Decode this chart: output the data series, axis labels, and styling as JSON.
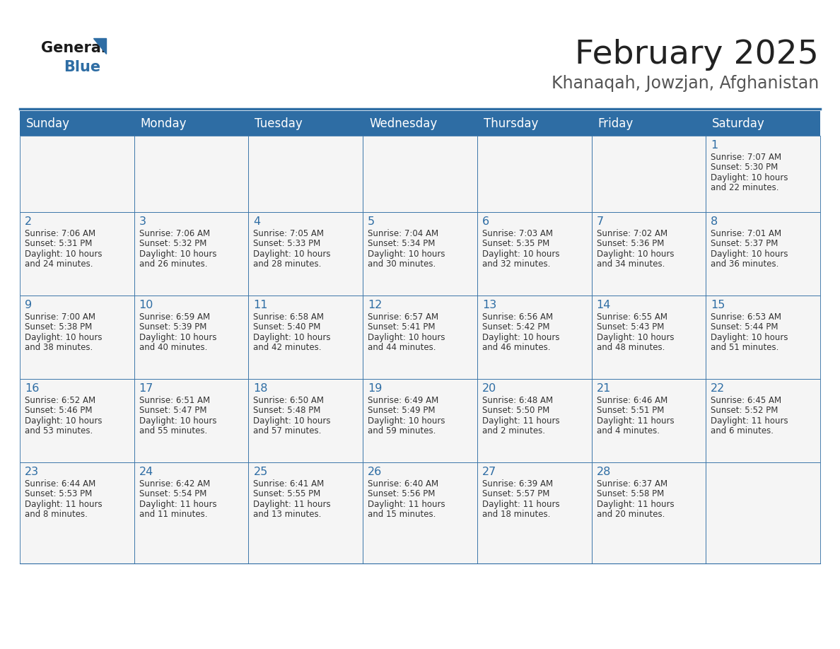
{
  "title": "February 2025",
  "subtitle": "Khanaqah, Jowzjan, Afghanistan",
  "days_of_week": [
    "Sunday",
    "Monday",
    "Tuesday",
    "Wednesday",
    "Thursday",
    "Friday",
    "Saturday"
  ],
  "header_bg": "#2E6DA4",
  "header_text": "#FFFFFF",
  "cell_bg": "#F5F5F5",
  "border_color": "#2E6DA4",
  "cell_border_color": "#2E6DA4",
  "title_color": "#222222",
  "subtitle_color": "#555555",
  "text_color": "#333333",
  "day_num_color": "#2E6DA4",
  "logo_general_color": "#1a1a1a",
  "logo_blue_color": "#2E6DA4",
  "logo_triangle_color": "#2E6DA4",
  "calendar_data": [
    [
      null,
      null,
      null,
      null,
      null,
      null,
      {
        "day": 1,
        "sunrise": "7:07 AM",
        "sunset": "5:30 PM",
        "daylight_line1": "Daylight: 10 hours",
        "daylight_line2": "and 22 minutes."
      }
    ],
    [
      {
        "day": 2,
        "sunrise": "7:06 AM",
        "sunset": "5:31 PM",
        "daylight_line1": "Daylight: 10 hours",
        "daylight_line2": "and 24 minutes."
      },
      {
        "day": 3,
        "sunrise": "7:06 AM",
        "sunset": "5:32 PM",
        "daylight_line1": "Daylight: 10 hours",
        "daylight_line2": "and 26 minutes."
      },
      {
        "day": 4,
        "sunrise": "7:05 AM",
        "sunset": "5:33 PM",
        "daylight_line1": "Daylight: 10 hours",
        "daylight_line2": "and 28 minutes."
      },
      {
        "day": 5,
        "sunrise": "7:04 AM",
        "sunset": "5:34 PM",
        "daylight_line1": "Daylight: 10 hours",
        "daylight_line2": "and 30 minutes."
      },
      {
        "day": 6,
        "sunrise": "7:03 AM",
        "sunset": "5:35 PM",
        "daylight_line1": "Daylight: 10 hours",
        "daylight_line2": "and 32 minutes."
      },
      {
        "day": 7,
        "sunrise": "7:02 AM",
        "sunset": "5:36 PM",
        "daylight_line1": "Daylight: 10 hours",
        "daylight_line2": "and 34 minutes."
      },
      {
        "day": 8,
        "sunrise": "7:01 AM",
        "sunset": "5:37 PM",
        "daylight_line1": "Daylight: 10 hours",
        "daylight_line2": "and 36 minutes."
      }
    ],
    [
      {
        "day": 9,
        "sunrise": "7:00 AM",
        "sunset": "5:38 PM",
        "daylight_line1": "Daylight: 10 hours",
        "daylight_line2": "and 38 minutes."
      },
      {
        "day": 10,
        "sunrise": "6:59 AM",
        "sunset": "5:39 PM",
        "daylight_line1": "Daylight: 10 hours",
        "daylight_line2": "and 40 minutes."
      },
      {
        "day": 11,
        "sunrise": "6:58 AM",
        "sunset": "5:40 PM",
        "daylight_line1": "Daylight: 10 hours",
        "daylight_line2": "and 42 minutes."
      },
      {
        "day": 12,
        "sunrise": "6:57 AM",
        "sunset": "5:41 PM",
        "daylight_line1": "Daylight: 10 hours",
        "daylight_line2": "and 44 minutes."
      },
      {
        "day": 13,
        "sunrise": "6:56 AM",
        "sunset": "5:42 PM",
        "daylight_line1": "Daylight: 10 hours",
        "daylight_line2": "and 46 minutes."
      },
      {
        "day": 14,
        "sunrise": "6:55 AM",
        "sunset": "5:43 PM",
        "daylight_line1": "Daylight: 10 hours",
        "daylight_line2": "and 48 minutes."
      },
      {
        "day": 15,
        "sunrise": "6:53 AM",
        "sunset": "5:44 PM",
        "daylight_line1": "Daylight: 10 hours",
        "daylight_line2": "and 51 minutes."
      }
    ],
    [
      {
        "day": 16,
        "sunrise": "6:52 AM",
        "sunset": "5:46 PM",
        "daylight_line1": "Daylight: 10 hours",
        "daylight_line2": "and 53 minutes."
      },
      {
        "day": 17,
        "sunrise": "6:51 AM",
        "sunset": "5:47 PM",
        "daylight_line1": "Daylight: 10 hours",
        "daylight_line2": "and 55 minutes."
      },
      {
        "day": 18,
        "sunrise": "6:50 AM",
        "sunset": "5:48 PM",
        "daylight_line1": "Daylight: 10 hours",
        "daylight_line2": "and 57 minutes."
      },
      {
        "day": 19,
        "sunrise": "6:49 AM",
        "sunset": "5:49 PM",
        "daylight_line1": "Daylight: 10 hours",
        "daylight_line2": "and 59 minutes."
      },
      {
        "day": 20,
        "sunrise": "6:48 AM",
        "sunset": "5:50 PM",
        "daylight_line1": "Daylight: 11 hours",
        "daylight_line2": "and 2 minutes."
      },
      {
        "day": 21,
        "sunrise": "6:46 AM",
        "sunset": "5:51 PM",
        "daylight_line1": "Daylight: 11 hours",
        "daylight_line2": "and 4 minutes."
      },
      {
        "day": 22,
        "sunrise": "6:45 AM",
        "sunset": "5:52 PM",
        "daylight_line1": "Daylight: 11 hours",
        "daylight_line2": "and 6 minutes."
      }
    ],
    [
      {
        "day": 23,
        "sunrise": "6:44 AM",
        "sunset": "5:53 PM",
        "daylight_line1": "Daylight: 11 hours",
        "daylight_line2": "and 8 minutes."
      },
      {
        "day": 24,
        "sunrise": "6:42 AM",
        "sunset": "5:54 PM",
        "daylight_line1": "Daylight: 11 hours",
        "daylight_line2": "and 11 minutes."
      },
      {
        "day": 25,
        "sunrise": "6:41 AM",
        "sunset": "5:55 PM",
        "daylight_line1": "Daylight: 11 hours",
        "daylight_line2": "and 13 minutes."
      },
      {
        "day": 26,
        "sunrise": "6:40 AM",
        "sunset": "5:56 PM",
        "daylight_line1": "Daylight: 11 hours",
        "daylight_line2": "and 15 minutes."
      },
      {
        "day": 27,
        "sunrise": "6:39 AM",
        "sunset": "5:57 PM",
        "daylight_line1": "Daylight: 11 hours",
        "daylight_line2": "and 18 minutes."
      },
      {
        "day": 28,
        "sunrise": "6:37 AM",
        "sunset": "5:58 PM",
        "daylight_line1": "Daylight: 11 hours",
        "daylight_line2": "and 20 minutes."
      },
      null
    ]
  ],
  "fig_width": 11.88,
  "fig_height": 9.18,
  "dpi": 100
}
